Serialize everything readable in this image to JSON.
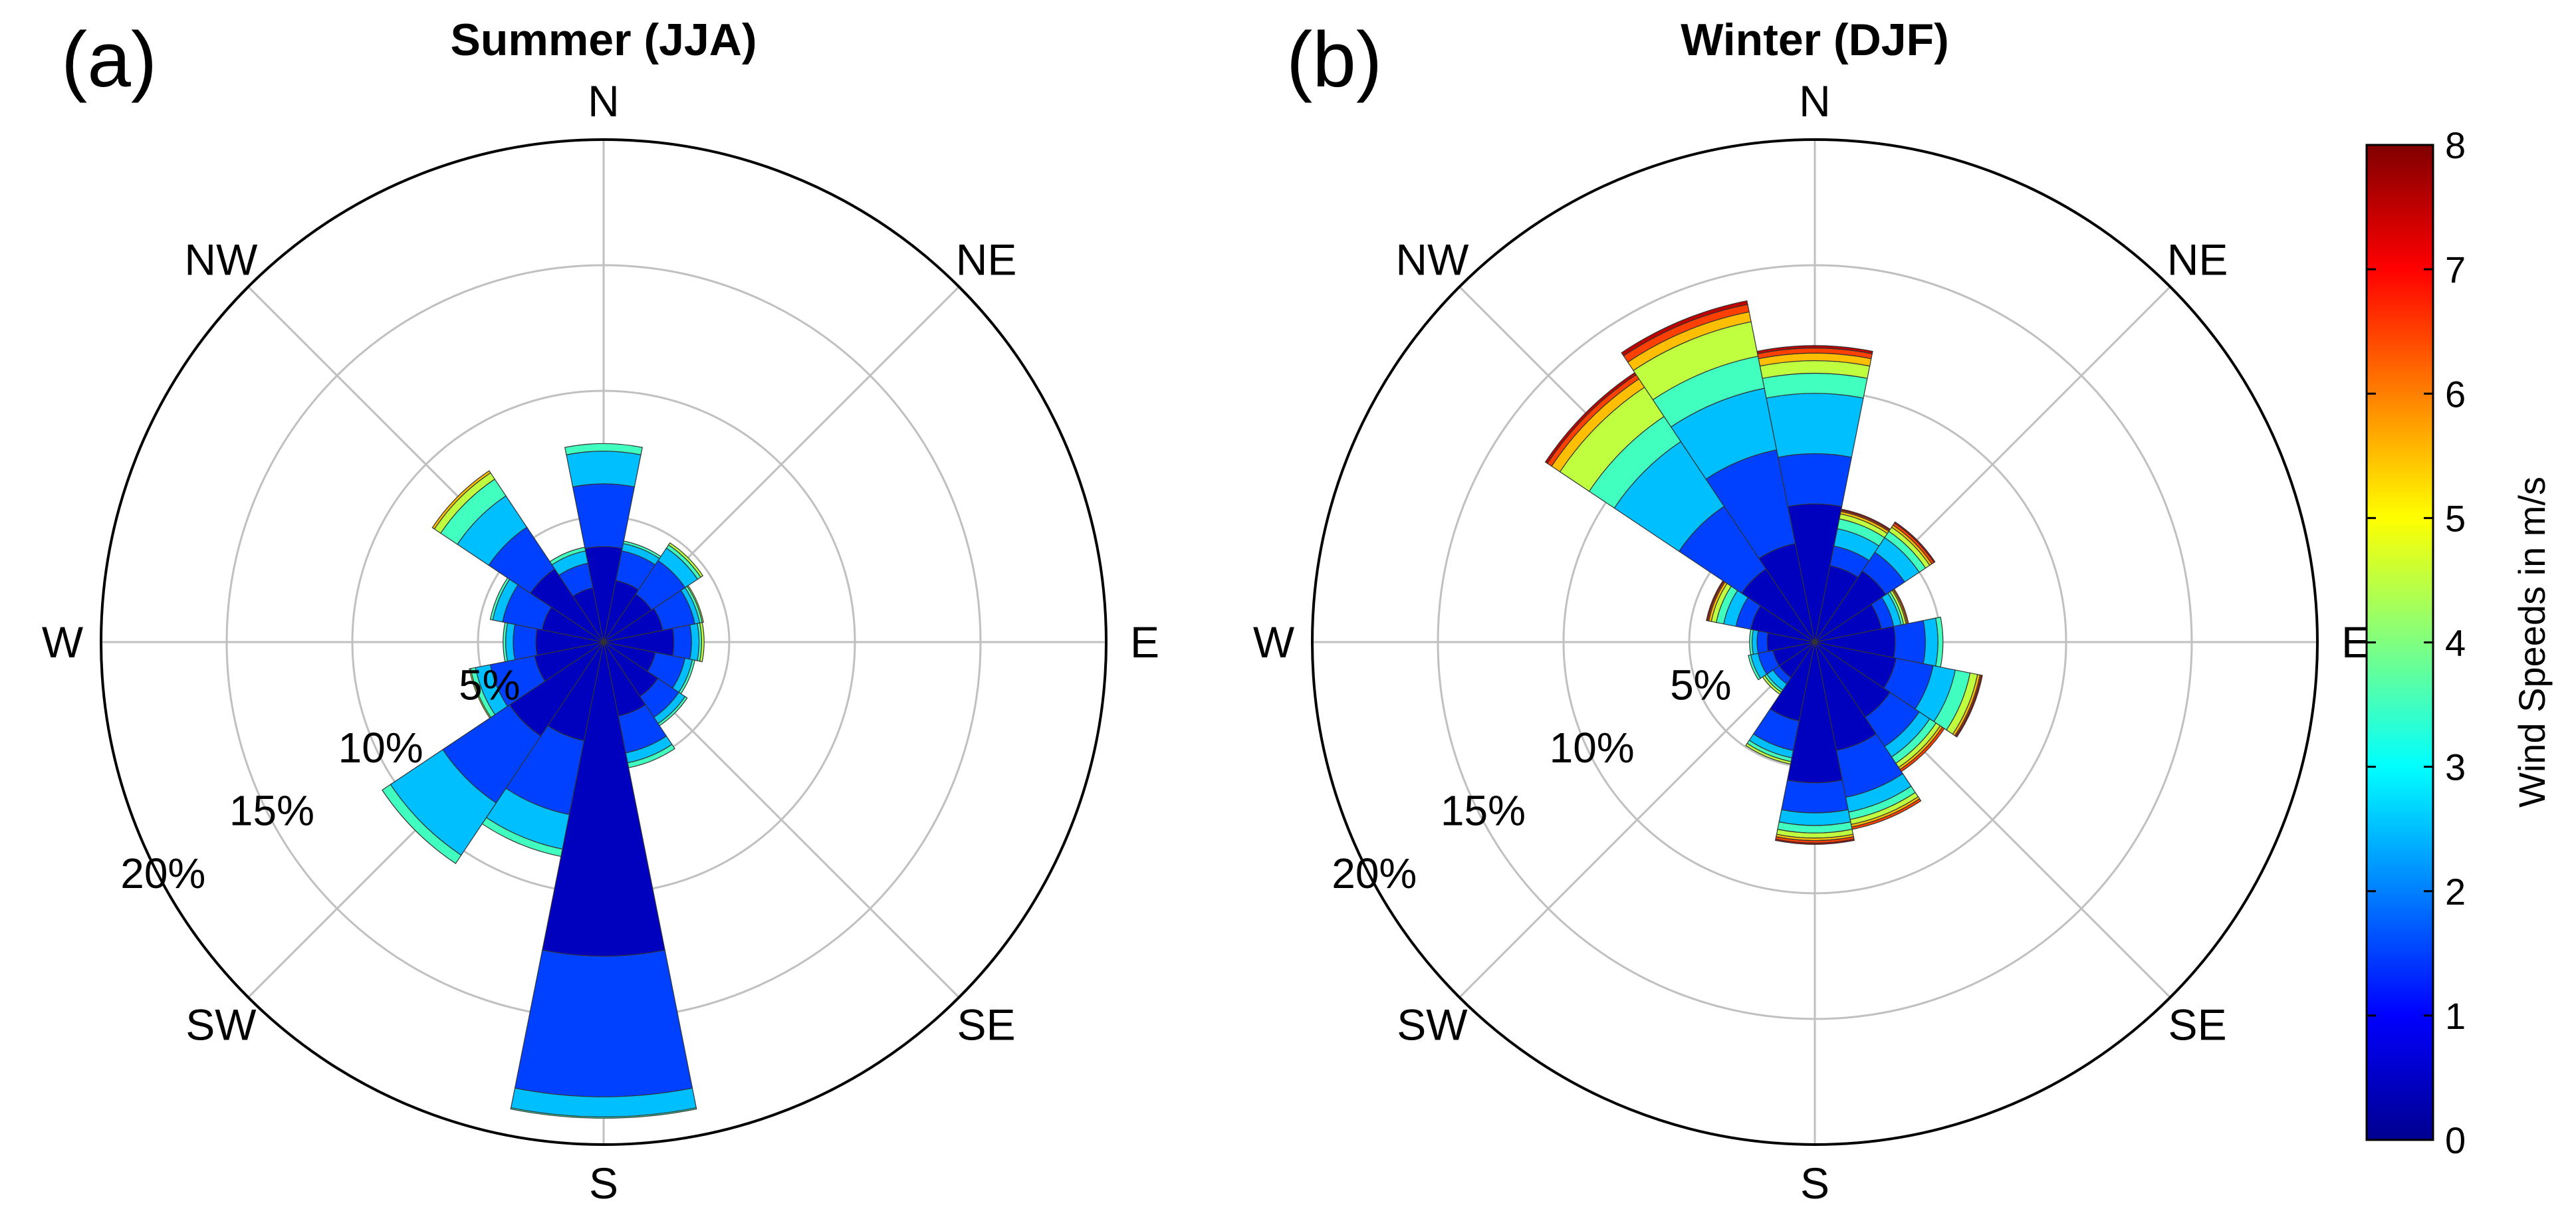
{
  "chart_data": [
    {
      "type": "windrose",
      "panel_label": "(a)",
      "title": "Summer (JJA)",
      "directions": [
        "N",
        "NNE",
        "NE",
        "ENE",
        "E",
        "ESE",
        "SE",
        "SSE",
        "S",
        "SSW",
        "SW",
        "WSW",
        "W",
        "WNW",
        "NW",
        "NNW"
      ],
      "direction_labels": [
        "N",
        "NE",
        "E",
        "SE",
        "S",
        "SW",
        "W",
        "NW"
      ],
      "ring_labels": [
        "5%",
        "10%",
        "15%",
        "20%"
      ],
      "max_radius_percent": 20,
      "speed_bins_ms": [
        0,
        1,
        2,
        3,
        4,
        5,
        6,
        7,
        8
      ],
      "frequencies_percent": [
        [
          3.8,
          2.5,
          1.3,
          0.3,
          0,
          0,
          0,
          0
        ],
        [
          2.5,
          1.2,
          0.3,
          0.1,
          0,
          0,
          0,
          0
        ],
        [
          2.3,
          1.6,
          0.6,
          0.15,
          0.1,
          0,
          0,
          0
        ],
        [
          2.4,
          1.3,
          0.2,
          0.1,
          0.05,
          0,
          0,
          0
        ],
        [
          2.8,
          0.7,
          0.3,
          0.1,
          0.1,
          0,
          0,
          0
        ],
        [
          2.1,
          1.2,
          0.3,
          0.1,
          0,
          0,
          0,
          0
        ],
        [
          2.6,
          1.0,
          0.3,
          0.1,
          0,
          0,
          0,
          0
        ],
        [
          3.0,
          1.5,
          0.4,
          0.2,
          0,
          0,
          0,
          0
        ],
        [
          12.5,
          5.6,
          0.8,
          0.05,
          0,
          0,
          0,
          0
        ],
        [
          4.0,
          3.0,
          1.4,
          0.3,
          0,
          0,
          0,
          0
        ],
        [
          4.5,
          3.2,
          2.5,
          0.4,
          0,
          0,
          0,
          0
        ],
        [
          2.8,
          1.8,
          0.6,
          0.2,
          0.05,
          0,
          0,
          0
        ],
        [
          2.7,
          0.9,
          0.3,
          0.1,
          0,
          0,
          0,
          0
        ],
        [
          2.5,
          1.6,
          0.4,
          0.1,
          0,
          0,
          0,
          0
        ],
        [
          3.5,
          2.0,
          1.5,
          0.8,
          0.3,
          0.1,
          0,
          0
        ],
        [
          2.2,
          1.0,
          0.5,
          0.15,
          0,
          0,
          0,
          0
        ]
      ]
    },
    {
      "type": "windrose",
      "panel_label": "(b)",
      "title": "Winter (DJF)",
      "directions": [
        "N",
        "NNE",
        "NE",
        "ENE",
        "E",
        "ESE",
        "SE",
        "SSE",
        "S",
        "SSW",
        "SW",
        "WSW",
        "W",
        "WNW",
        "NW",
        "NNW"
      ],
      "direction_labels": [
        "N",
        "NE",
        "E",
        "SE",
        "S",
        "SW",
        "W",
        "NW"
      ],
      "ring_labels": [
        "5%",
        "10%",
        "15%",
        "20%"
      ],
      "max_radius_percent": 20,
      "speed_bins_ms": [
        0,
        1,
        2,
        3,
        4,
        5,
        6,
        7,
        8
      ],
      "frequencies_percent": [
        [
          5.5,
          2.0,
          2.4,
          0.8,
          0.5,
          0.3,
          0.2,
          0.1
        ],
        [
          3.1,
          0.8,
          0.7,
          0.4,
          0.2,
          0.1,
          0.05,
          0.05
        ],
        [
          3.4,
          0.9,
          0.7,
          0.3,
          0.2,
          0.1,
          0.1,
          0.05
        ],
        [
          2.7,
          0.5,
          0.3,
          0.1,
          0.1,
          0.05,
          0.05,
          0
        ],
        [
          3.2,
          1.2,
          0.5,
          0.2,
          0,
          0,
          0,
          0
        ],
        [
          3.3,
          1.5,
          0.9,
          0.6,
          0.3,
          0.1,
          0.05,
          0.05
        ],
        [
          3.6,
          1.4,
          0.5,
          0.3,
          0.2,
          0.1,
          0.1,
          0
        ],
        [
          4.4,
          1.9,
          0.6,
          0.3,
          0.2,
          0.1,
          0.1,
          0
        ],
        [
          5.6,
          1.2,
          0.5,
          0.3,
          0.2,
          0.1,
          0.1,
          0.05
        ],
        [
          3.2,
          1.2,
          0.3,
          0.15,
          0.1,
          0,
          0,
          0
        ],
        [
          1.7,
          0.3,
          0.3,
          0.1,
          0.1,
          0,
          0,
          0
        ],
        [
          1.7,
          0.6,
          0.3,
          0.1,
          0,
          0,
          0,
          0
        ],
        [
          1.9,
          0.4,
          0.2,
          0.1,
          0,
          0,
          0,
          0
        ],
        [
          2.6,
          0.6,
          0.5,
          0.3,
          0.2,
          0.1,
          0.05,
          0.05
        ],
        [
          3.5,
          3.0,
          3.1,
          1.2,
          1.4,
          0.4,
          0.2,
          0.1
        ],
        [
          4.0,
          3.8,
          2.5,
          1.3,
          1.4,
          0.4,
          0.3,
          0.15
        ]
      ]
    }
  ],
  "colorbar": {
    "label": "Wind Speeds in m/s",
    "min": 0,
    "max": 8,
    "ticks": [
      "0",
      "1",
      "2",
      "3",
      "4",
      "5",
      "6",
      "7",
      "8"
    ],
    "colormap": "jet",
    "outline_color": "#000000"
  },
  "colors": {
    "grid": "#c0c0c0",
    "axis_circle": "#000000",
    "wedge_edge": "#333333"
  }
}
